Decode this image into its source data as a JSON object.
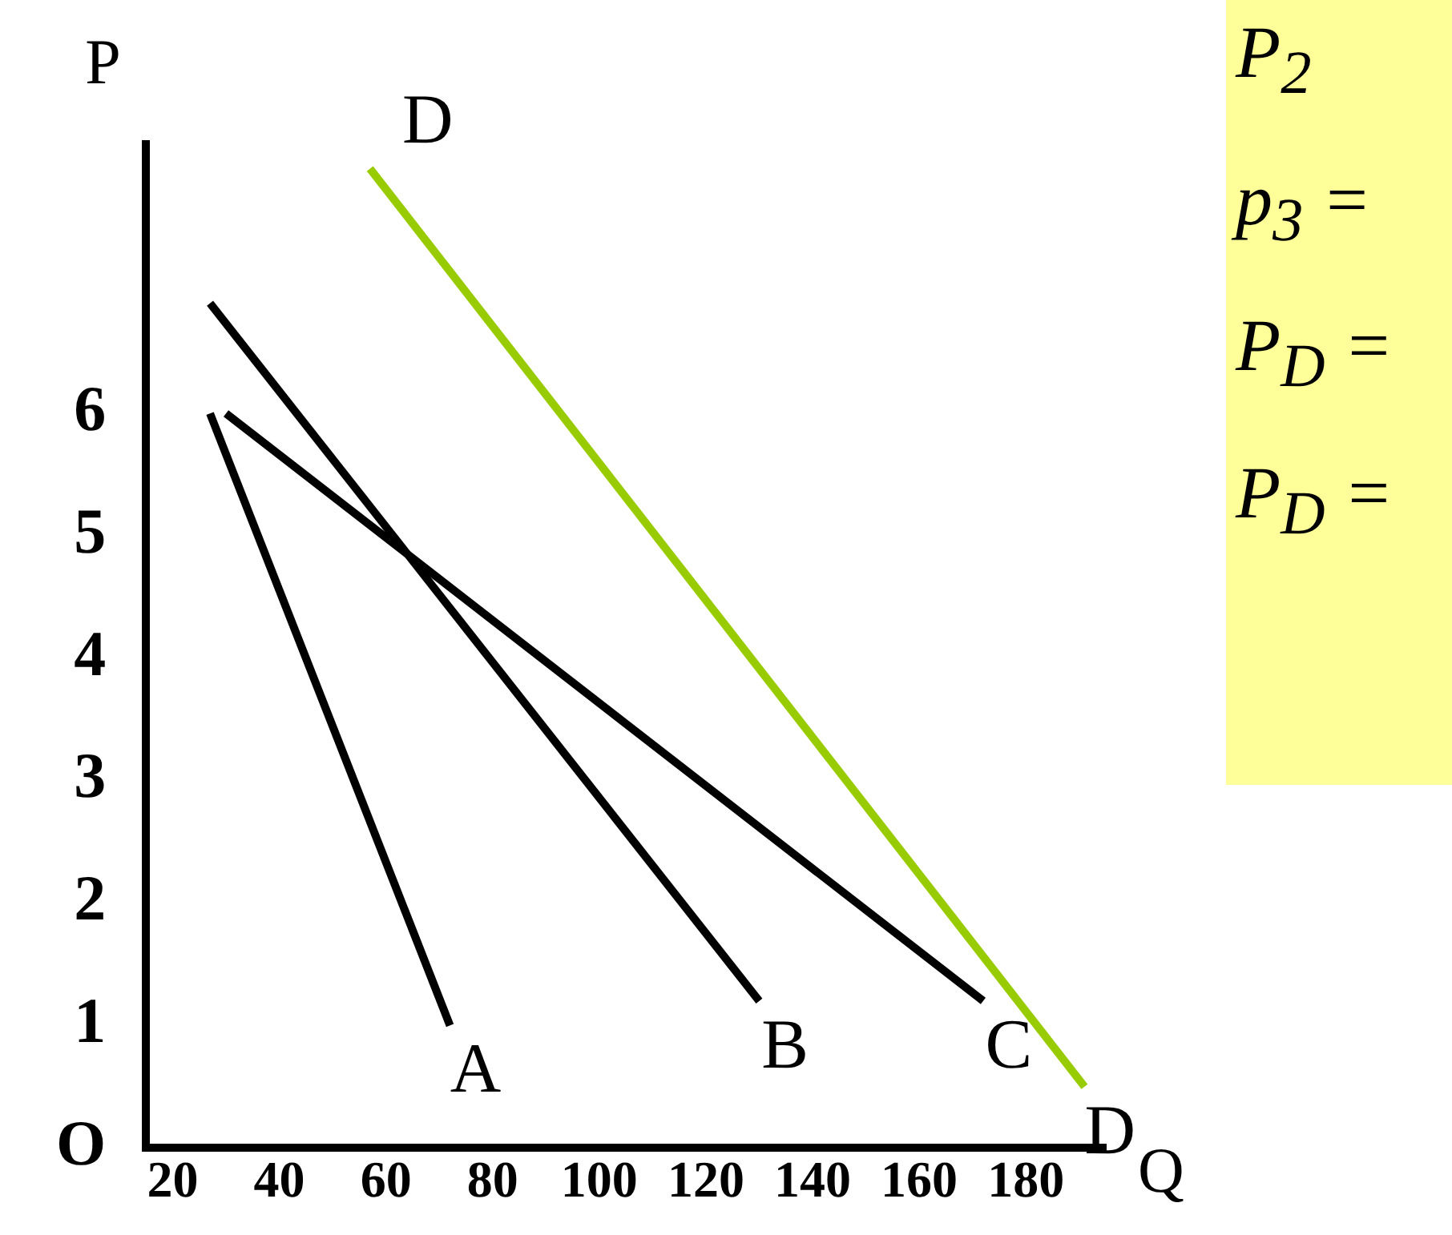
{
  "chart_data": {
    "type": "line",
    "xlabel": "Q",
    "ylabel": "P",
    "xlim": [
      15,
      195
    ],
    "ylim": [
      0,
      8.2
    ],
    "xticks": [
      20,
      40,
      60,
      80,
      100,
      120,
      140,
      160,
      180
    ],
    "yticks": [
      {
        "value": 0,
        "label": "O"
      },
      1,
      2,
      3,
      4,
      5,
      6
    ],
    "grid": false,
    "legend": false,
    "marker": "none",
    "line_style": "solid",
    "series": [
      {
        "name": "A",
        "color": "#000000",
        "x": [
          27,
          72
        ],
        "values": [
          6,
          1
        ]
      },
      {
        "name": "B",
        "color": "#000000",
        "x": [
          27,
          130
        ],
        "values": [
          6.9,
          1.2
        ]
      },
      {
        "name": "C",
        "color": "#000000",
        "x": [
          30,
          172
        ],
        "values": [
          6,
          1.2
        ]
      },
      {
        "name": "D",
        "color": "#99cc00",
        "x": [
          57,
          191
        ],
        "values": [
          8,
          0.5
        ]
      }
    ],
    "annotations": [
      {
        "text": "D",
        "x": 57,
        "y": 8
      },
      "P$_{2}$",
      "p$_{3}$ =",
      "P$_{D}$ =",
      "P$_{D}$ ="
    ]
  }
}
